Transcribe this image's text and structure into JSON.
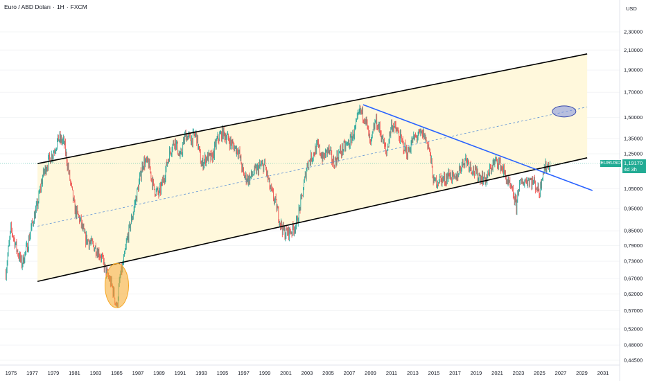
{
  "header": {
    "symbol_name": "Euro / ABD Doları",
    "sep1": "·",
    "interval": "1H",
    "sep2": "·",
    "exchange": "FXCM",
    "currency": "USD"
  },
  "price_badge": {
    "symbol": "EURUSD",
    "price": "1,19170",
    "countdown": "4d 3h"
  },
  "colors": {
    "up": "#26a69a",
    "down": "#ef5350",
    "channel_fill": "#fff8dc",
    "channel_line": "#000000",
    "trendline": "#2962ff",
    "midline": "#5b8fd6",
    "price_line": "#22ab94",
    "highlight_orange": "#f5a623",
    "highlight_blue": "#7e8fe0"
  },
  "chart_data": {
    "type": "line",
    "title": "",
    "xlabel": "",
    "ylabel": "",
    "y_scale": "log",
    "y_ticks": [
      "2,30000",
      "2,10000",
      "1,90000",
      "1,70000",
      "1,50000",
      "1,35000",
      "1,25000",
      "1,05000",
      "0,95000",
      "0,85000",
      "0,79000",
      "0,73000",
      "0,67000",
      "0,62000",
      "0,57000",
      "0,52000",
      "0,48000",
      "0,44500"
    ],
    "y_tick_values": [
      2.3,
      2.1,
      1.9,
      1.7,
      1.5,
      1.35,
      1.25,
      1.05,
      0.95,
      0.85,
      0.79,
      0.73,
      0.67,
      0.62,
      0.57,
      0.52,
      0.48,
      0.445
    ],
    "x_ticks": [
      "1975",
      "1977",
      "1979",
      "1981",
      "1983",
      "1985",
      "1987",
      "1989",
      "1991",
      "1993",
      "1995",
      "1997",
      "1999",
      "2001",
      "2003",
      "2005",
      "2007",
      "2009",
      "2011",
      "2013",
      "2015",
      "2017",
      "2019",
      "2021",
      "2023",
      "2025",
      "2027",
      "2029",
      "2031"
    ],
    "x_tick_values": [
      1975,
      1977,
      1979,
      1981,
      1983,
      1985,
      1987,
      1989,
      1991,
      1993,
      1995,
      1997,
      1999,
      2001,
      2003,
      2005,
      2007,
      2009,
      2011,
      2013,
      2015,
      2017,
      2019,
      2021,
      2023,
      2025,
      2027,
      2029,
      2031
    ],
    "series": [
      {
        "x": [
          1974.5,
          1975.0,
          1975.5,
          1976.0,
          1976.5,
          1977.0,
          1977.5,
          1978.0,
          1978.5,
          1979.0,
          1979.5,
          1980.0,
          1980.5,
          1981.0,
          1981.5,
          1982.0,
          1982.5,
          1983.0,
          1983.5,
          1984.0,
          1984.5,
          1985.0,
          1985.3,
          1985.7,
          1986.0,
          1986.5,
          1987.0,
          1987.5,
          1988.0,
          1988.5,
          1989.0,
          1989.5,
          1990.0,
          1990.5,
          1991.0,
          1991.5,
          1992.0,
          1992.5,
          1993.0,
          1993.5,
          1994.0,
          1994.5,
          1995.0,
          1995.5,
          1996.0,
          1996.5,
          1997.0,
          1997.5,
          1998.0,
          1998.5,
          1999.0,
          1999.5,
          2000.0,
          2000.5,
          2000.9,
          2001.5,
          2002.0,
          2002.5,
          2003.0,
          2003.5,
          2004.0,
          2004.5,
          2005.0,
          2005.5,
          2006.0,
          2006.5,
          2007.0,
          2007.5,
          2008.0,
          2008.5,
          2009.0,
          2009.5,
          2010.0,
          2010.5,
          2011.0,
          2011.5,
          2012.0,
          2012.5,
          2013.0,
          2013.5,
          2014.0,
          2014.5,
          2015.0,
          2015.5,
          2016.0,
          2016.5,
          2017.0,
          2017.5,
          2018.0,
          2018.5,
          2019.0,
          2019.5,
          2020.0,
          2020.5,
          2021.0,
          2021.5,
          2022.0,
          2022.5,
          2022.8,
          2023.0,
          2023.5,
          2024.0,
          2024.5,
          2025.0,
          2025.3,
          2025.6,
          2026.0
        ],
        "y": [
          0.69,
          0.86,
          0.78,
          0.72,
          0.78,
          0.88,
          0.97,
          1.12,
          1.2,
          1.26,
          1.35,
          1.32,
          1.12,
          0.95,
          0.9,
          0.82,
          0.8,
          0.78,
          0.75,
          0.69,
          0.65,
          0.58,
          0.67,
          0.74,
          0.82,
          0.92,
          1.05,
          1.2,
          1.19,
          1.05,
          1.02,
          1.12,
          1.26,
          1.34,
          1.22,
          1.38,
          1.34,
          1.38,
          1.18,
          1.23,
          1.22,
          1.34,
          1.39,
          1.35,
          1.3,
          1.27,
          1.12,
          1.1,
          1.14,
          1.17,
          1.18,
          1.05,
          0.98,
          0.88,
          0.84,
          0.85,
          0.88,
          1.0,
          1.18,
          1.24,
          1.3,
          1.22,
          1.28,
          1.19,
          1.25,
          1.29,
          1.32,
          1.4,
          1.55,
          1.5,
          1.3,
          1.48,
          1.38,
          1.25,
          1.45,
          1.4,
          1.32,
          1.25,
          1.34,
          1.37,
          1.38,
          1.3,
          1.08,
          1.1,
          1.1,
          1.13,
          1.09,
          1.17,
          1.22,
          1.17,
          1.13,
          1.11,
          1.1,
          1.18,
          1.21,
          1.16,
          1.08,
          1.02,
          0.96,
          1.06,
          1.09,
          1.1,
          1.08,
          1.03,
          1.15,
          1.17,
          1.19
        ]
      }
    ],
    "annotations": {
      "channel_upper": {
        "x": [
          1977.5,
          2029.5
        ],
        "y": [
          1.19,
          2.06
        ]
      },
      "channel_lower": {
        "x": [
          1977.5,
          2029.5
        ],
        "y": [
          0.66,
          1.225
        ]
      },
      "channel_mid": {
        "x": [
          1977.5,
          2029.5
        ],
        "y": [
          0.87,
          1.58
        ]
      },
      "trendline": {
        "x": [
          2008.3,
          2030.0
        ],
        "y": [
          1.598,
          1.04
        ]
      },
      "last_price": 1.1917,
      "highlight_low": {
        "x": 1985.0,
        "y": 0.62
      },
      "target": {
        "x": 2028.5,
        "y": 1.545
      }
    }
  }
}
